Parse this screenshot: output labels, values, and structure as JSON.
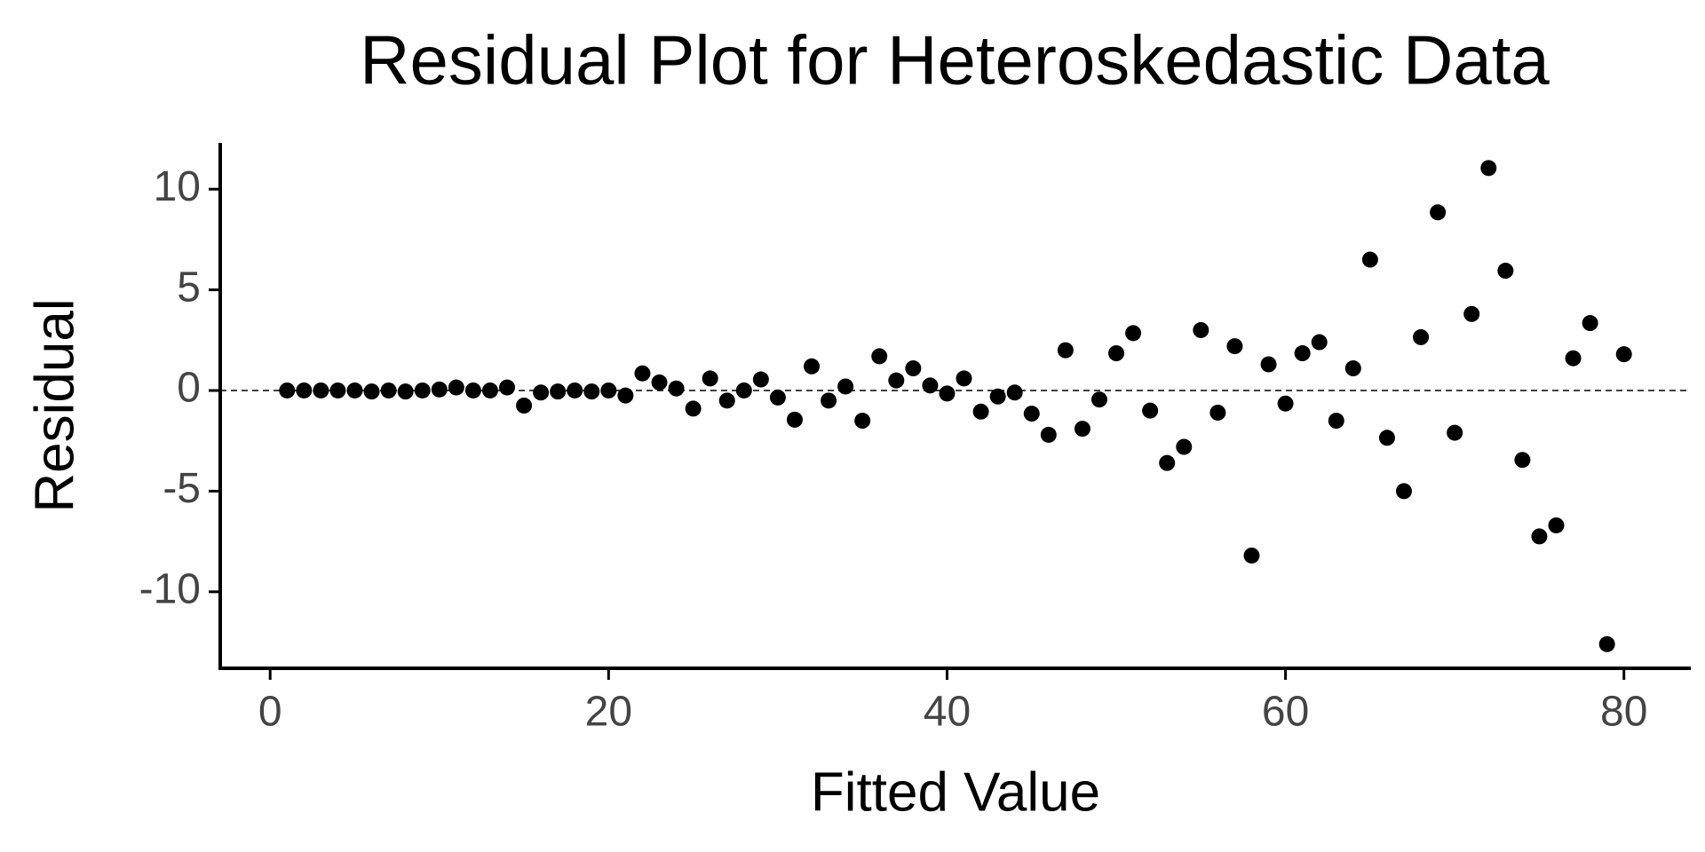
{
  "chart_data": {
    "type": "scatter",
    "title": "Residual Plot for Heteroskedastic Data",
    "x_label": "Fitted Value",
    "y_label": "Residual",
    "color": "#000000",
    "x": [
      1,
      2,
      3,
      4,
      5,
      6,
      7,
      8,
      9,
      10,
      11,
      12,
      13,
      14,
      15,
      16,
      17,
      18,
      19,
      20,
      21,
      22,
      23,
      24,
      25,
      26,
      27,
      28,
      29,
      30,
      31,
      32,
      33,
      34,
      35,
      36,
      37,
      38,
      39,
      40,
      41,
      42,
      43,
      44,
      45,
      46,
      47,
      48,
      49,
      50,
      51,
      52,
      53,
      54,
      55,
      56,
      57,
      58,
      59,
      60,
      61,
      62,
      63,
      64,
      65,
      66,
      67,
      68,
      69,
      70,
      71,
      72,
      73,
      74,
      75,
      76,
      77,
      78,
      79,
      80
    ],
    "values": [
      0,
      0,
      0,
      0,
      0,
      -0.05,
      0,
      -0.05,
      0,
      0.05,
      0.15,
      0,
      0,
      0.15,
      -0.75,
      -0.1,
      -0.05,
      0,
      -0.05,
      0,
      -0.25,
      0.85,
      0.4,
      0.1,
      -0.9,
      0.6,
      -0.5,
      0,
      0.55,
      -0.35,
      -1.45,
      1.2,
      -0.5,
      0.2,
      -1.5,
      1.7,
      0.5,
      1.1,
      0.25,
      -0.15,
      0.6,
      -1.05,
      -0.3,
      -0.1,
      -1.15,
      -2.2,
      2.0,
      -1.9,
      -0.45,
      1.85,
      2.85,
      -1.0,
      -3.6,
      -2.8,
      3.0,
      -1.1,
      2.2,
      -8.2,
      1.3,
      -0.65,
      1.85,
      2.4,
      -1.5,
      1.1,
      6.5,
      -2.35,
      -5.0,
      2.65,
      8.85,
      -2.1,
      3.8,
      11.05,
      5.95,
      -3.45,
      -7.25,
      -6.7,
      1.6,
      3.35,
      -12.6,
      1.8
    ],
    "reference_line": 0,
    "xlim": [
      -2.95,
      83.95
    ],
    "ylim": [
      -13.8,
      12.3
    ],
    "xticks": [
      0,
      20,
      40,
      60,
      80
    ],
    "yticks": [
      -10,
      -5,
      0,
      5,
      10
    ]
  }
}
